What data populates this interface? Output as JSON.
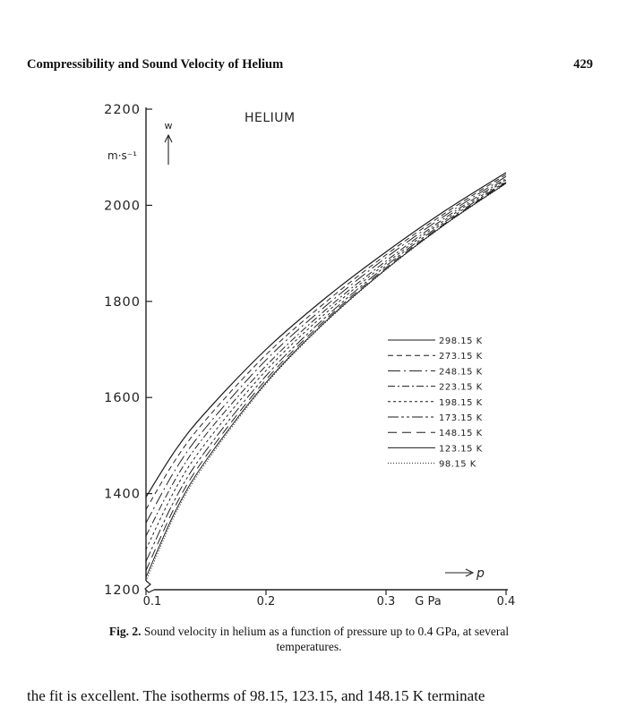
{
  "header": {
    "running_title": "Compressibility and Sound Velocity of Helium",
    "page_number": "429"
  },
  "chart_data": {
    "type": "line",
    "title": "HELIUM",
    "xlabel": "p",
    "xunit": "G Pa",
    "ylabel": "w",
    "yunit": "m·s⁻¹",
    "xlim": [
      0.1,
      0.4
    ],
    "ylim": [
      1200,
      2200
    ],
    "xticks": [
      "0.1",
      "0.2",
      "0.3",
      "0.4"
    ],
    "yticks": [
      "1200",
      "1400",
      "1600",
      "1800",
      "2000",
      "2200"
    ],
    "grid": false,
    "legend_position": "right",
    "x": [
      0.1,
      0.125,
      0.15,
      0.2,
      0.25,
      0.3,
      0.35,
      0.4
    ],
    "series": [
      {
        "name": "298.15 K",
        "dash": "solid",
        "values": [
          1393,
          1492,
          1570,
          1700,
          1808,
          1903,
          1990,
          2068
        ]
      },
      {
        "name": "273.15 K",
        "dash": "6,4",
        "values": [
          1367,
          1472,
          1554,
          1689,
          1799,
          1897,
          1985,
          2064
        ]
      },
      {
        "name": "248.15 K",
        "dash": "14,4,2,4",
        "values": [
          1339,
          1452,
          1538,
          1678,
          1791,
          1891,
          1980,
          2060
        ]
      },
      {
        "name": "223.15 K",
        "dash": "8,3,2,3",
        "values": [
          1312,
          1432,
          1523,
          1666,
          1783,
          1884,
          1975,
          2056
        ]
      },
      {
        "name": "198.15 K",
        "dash": "3,3",
        "values": [
          1284,
          1412,
          1506,
          1656,
          1776,
          1879,
          1971,
          2053
        ]
      },
      {
        "name": "173.15 K",
        "dash": "12,3,3,3,3,3",
        "values": [
          1259,
          1392,
          1490,
          1645,
          1768,
          1874,
          1967,
          2050
        ]
      },
      {
        "name": "148.15 K",
        "dash": "10,6",
        "values": [
          1240,
          1377,
          1478,
          1637,
          1763,
          1870,
          1964,
          2048
        ]
      },
      {
        "name": "123.15 K",
        "dash": "solid",
        "values": [
          1226,
          1366,
          1469,
          1631,
          1759,
          1867,
          1962,
          2046
        ]
      },
      {
        "name": "98.15 K",
        "dash": "1,2",
        "values": [
          1218,
          1360,
          1464,
          1628,
          1757,
          1866,
          1961,
          2045
        ]
      }
    ]
  },
  "caption": {
    "label": "Fig. 2.",
    "text": "Sound velocity in helium as a function of pressure up to 0.4 GPa, at several temperatures."
  },
  "body_text": "the fit is excellent. The isotherms of 98.15, 123.15, and 148.15 K terminate"
}
